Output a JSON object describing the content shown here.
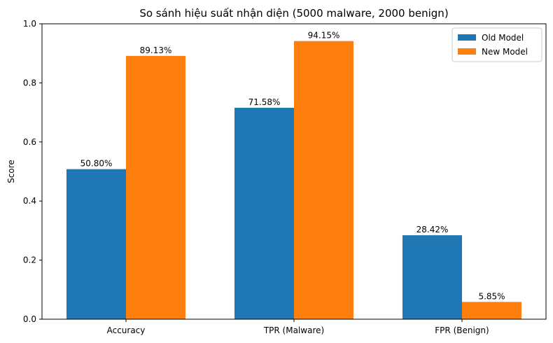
{
  "chart_data": {
    "type": "bar",
    "title": "So sánh hiệu suất nhận diện (5000 malware, 2000 benign)",
    "xlabel": "",
    "ylabel": "Score",
    "ylim": [
      0,
      1.0
    ],
    "yticks": [
      "0.0",
      "0.2",
      "0.4",
      "0.6",
      "0.8",
      "1.0"
    ],
    "categories": [
      "Accuracy",
      "TPR (Malware)",
      "FPR (Benign)"
    ],
    "series": [
      {
        "name": "Old Model",
        "color": "#1f77b4",
        "values": [
          0.508,
          0.7158,
          0.2842
        ],
        "labels": [
          "50.80%",
          "71.58%",
          "28.42%"
        ]
      },
      {
        "name": "New Model",
        "color": "#ff7f0e",
        "values": [
          0.8913,
          0.9415,
          0.0585
        ],
        "labels": [
          "89.13%",
          "94.15%",
          "5.85%"
        ]
      }
    ],
    "legend_position": "top-right",
    "grid": false
  }
}
